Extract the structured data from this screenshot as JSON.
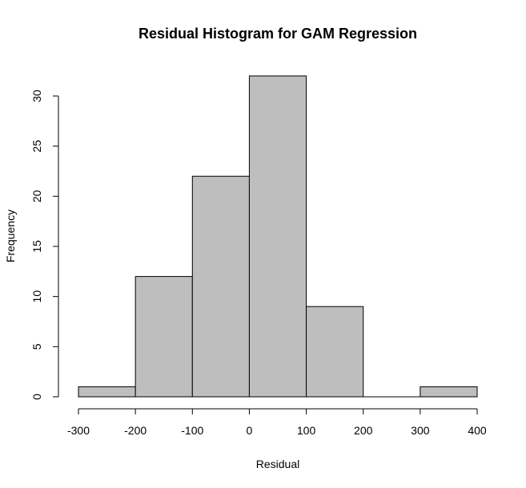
{
  "chart_data": {
    "type": "bar",
    "title": "Residual Histogram for GAM Regression",
    "xlabel": "Residual",
    "ylabel": "Frequency",
    "bins": [
      {
        "from": -300,
        "to": -200,
        "count": 1
      },
      {
        "from": -200,
        "to": -100,
        "count": 12
      },
      {
        "from": -100,
        "to": 0,
        "count": 22
      },
      {
        "from": 0,
        "to": 100,
        "count": 32
      },
      {
        "from": 100,
        "to": 200,
        "count": 9
      },
      {
        "from": 200,
        "to": 300,
        "count": 0
      },
      {
        "from": 300,
        "to": 400,
        "count": 1
      }
    ],
    "xticks": [
      -300,
      -200,
      -100,
      0,
      100,
      200,
      300,
      400
    ],
    "yticks": [
      0,
      5,
      10,
      15,
      20,
      25,
      30
    ],
    "xlim": [
      -300,
      400
    ],
    "ylim": [
      0,
      32
    ],
    "grid": false,
    "bar_color": "#bebebe"
  }
}
